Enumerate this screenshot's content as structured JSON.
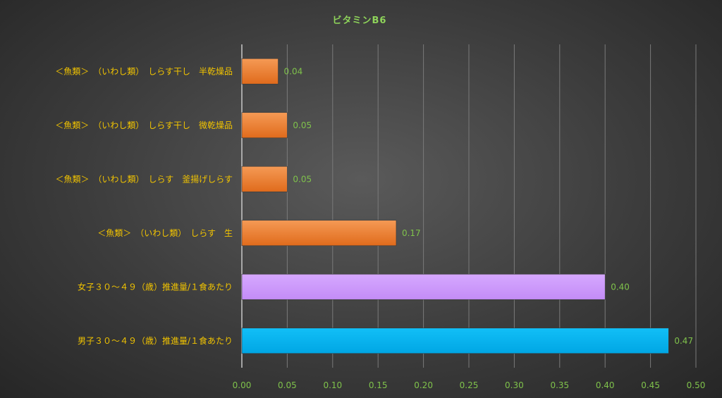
{
  "chart_data": {
    "type": "bar",
    "orientation": "horizontal",
    "title": "ビタミンB6",
    "categories": [
      "＜魚類＞　（いわし類）　しらす干し　半乾燥品",
      "＜魚類＞　（いわし類）　しらす干し　微乾燥品",
      "＜魚類＞　（いわし類）　しらす　釜揚げしらす",
      "＜魚類＞　（いわし類）　しらす　生",
      "女子３０～４９（歳）推進量/１食あたり",
      "男子３０～４９（歳）推進量/１食あたり"
    ],
    "values": [
      0.04,
      0.05,
      0.05,
      0.17,
      0.4,
      0.47
    ],
    "data_labels": [
      "0.04",
      "0.05",
      "0.05",
      "0.17",
      "0.40",
      "0.47"
    ],
    "bar_colors": [
      "#ed7d31",
      "#ed7d31",
      "#ed7d31",
      "#ed7d31",
      "#cc99ff",
      "#00b0f0"
    ],
    "xlim": [
      0,
      0.5
    ],
    "xticks": [
      "0.00",
      "0.05",
      "0.10",
      "0.15",
      "0.20",
      "0.25",
      "0.30",
      "0.35",
      "0.40",
      "0.45",
      "0.50"
    ],
    "xlabel": "",
    "ylabel": "",
    "grid": true,
    "legend": "none"
  }
}
